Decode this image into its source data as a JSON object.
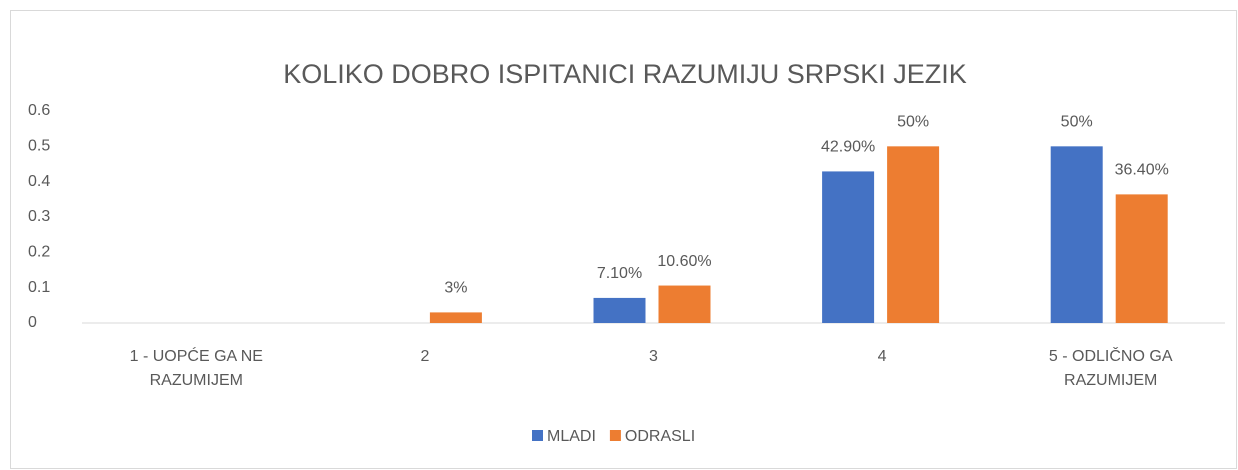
{
  "chart_data": {
    "type": "bar",
    "title": "KOLIKO DOBRO ISPITANICI RAZUMIJU SRPSKI JEZIK",
    "categories": [
      "1 - UOPĆE GA NE RAZUMIJEM",
      "2",
      "3",
      "4",
      "5 - ODLIČNO GA RAZUMIJEM"
    ],
    "series": [
      {
        "name": "MLADI",
        "color": "#4472c4",
        "values": [
          null,
          null,
          0.071,
          0.429,
          0.5
        ],
        "value_labels": [
          null,
          null,
          "7.10%",
          "42.90%",
          "50%"
        ]
      },
      {
        "name": "ODRASLI",
        "color": "#ed7d31",
        "values": [
          null,
          0.03,
          0.106,
          0.5,
          0.364
        ],
        "value_labels": [
          null,
          "3%",
          "10.60%",
          "50%",
          "36.40%"
        ]
      }
    ],
    "ylim": [
      0,
      0.6
    ],
    "yticks": [
      0,
      0.1,
      0.2,
      0.3,
      0.4,
      0.5,
      0.6
    ],
    "grid": false,
    "legend": "bottom"
  }
}
